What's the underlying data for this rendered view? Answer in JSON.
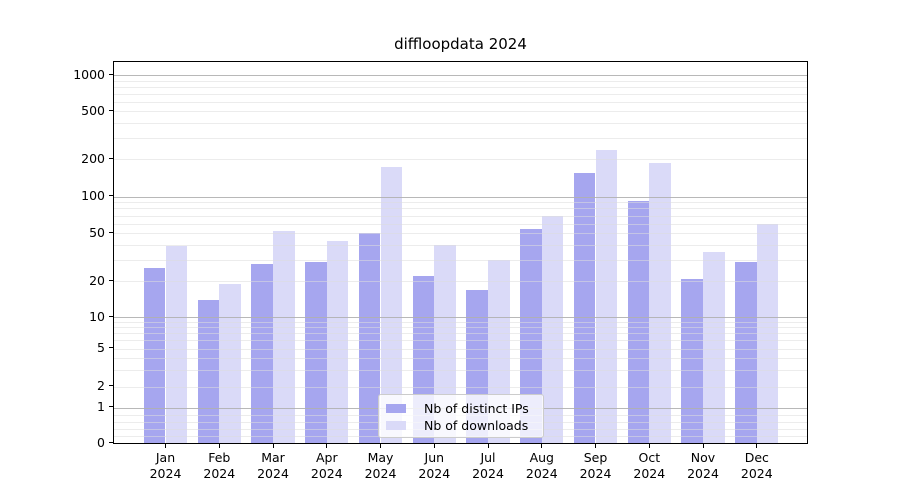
{
  "title": "diffloopdata 2024",
  "chart_data": {
    "type": "bar",
    "categories": [
      "Jan",
      "Feb",
      "Mar",
      "Apr",
      "May",
      "Jun",
      "Jul",
      "Aug",
      "Sep",
      "Oct",
      "Nov",
      "Dec"
    ],
    "category_year": "2024",
    "series": [
      {
        "name": "Nb of distinct IPs",
        "color": "#a6a6ef",
        "values": [
          26,
          14,
          28,
          29,
          50,
          22,
          17,
          54,
          155,
          92,
          21,
          29
        ]
      },
      {
        "name": "Nb of downloads",
        "color": "#dadaf8",
        "values": [
          39,
          19,
          52,
          43,
          172,
          40,
          30,
          70,
          240,
          185,
          35,
          60
        ]
      }
    ],
    "title": "diffloopdata 2024",
    "xlabel": "",
    "ylabel": "",
    "yscale": "asinh (log-like above 1, linear near 0)",
    "ylim": [
      0,
      1280
    ],
    "yticks": [
      {
        "value": 0,
        "label": "0"
      },
      {
        "value": 1,
        "label": "1"
      },
      {
        "value": 2,
        "label": "2"
      },
      {
        "value": 5,
        "label": "5"
      },
      {
        "value": 10,
        "label": "10"
      },
      {
        "value": 20,
        "label": "20"
      },
      {
        "value": 50,
        "label": "50"
      },
      {
        "value": 100,
        "label": "100"
      },
      {
        "value": 200,
        "label": "200"
      },
      {
        "value": 500,
        "label": "500"
      },
      {
        "value": 1000,
        "label": "1000"
      }
    ],
    "grid": "major (decades, gray) + minor (light gray), drawn over bars",
    "legend_position": "lower center"
  },
  "legend": {
    "items": [
      {
        "label": "Nb of distinct IPs",
        "color": "#a6a6ef"
      },
      {
        "label": "Nb of downloads",
        "color": "#dadaf8"
      }
    ]
  },
  "colors": {
    "background": "#ffffff",
    "bar_dark": "#a6a6ef",
    "bar_light": "#dadaf8",
    "grid_major": "#b0b0b0",
    "grid_minor": "#dcdcdc",
    "axis": "#000000"
  }
}
